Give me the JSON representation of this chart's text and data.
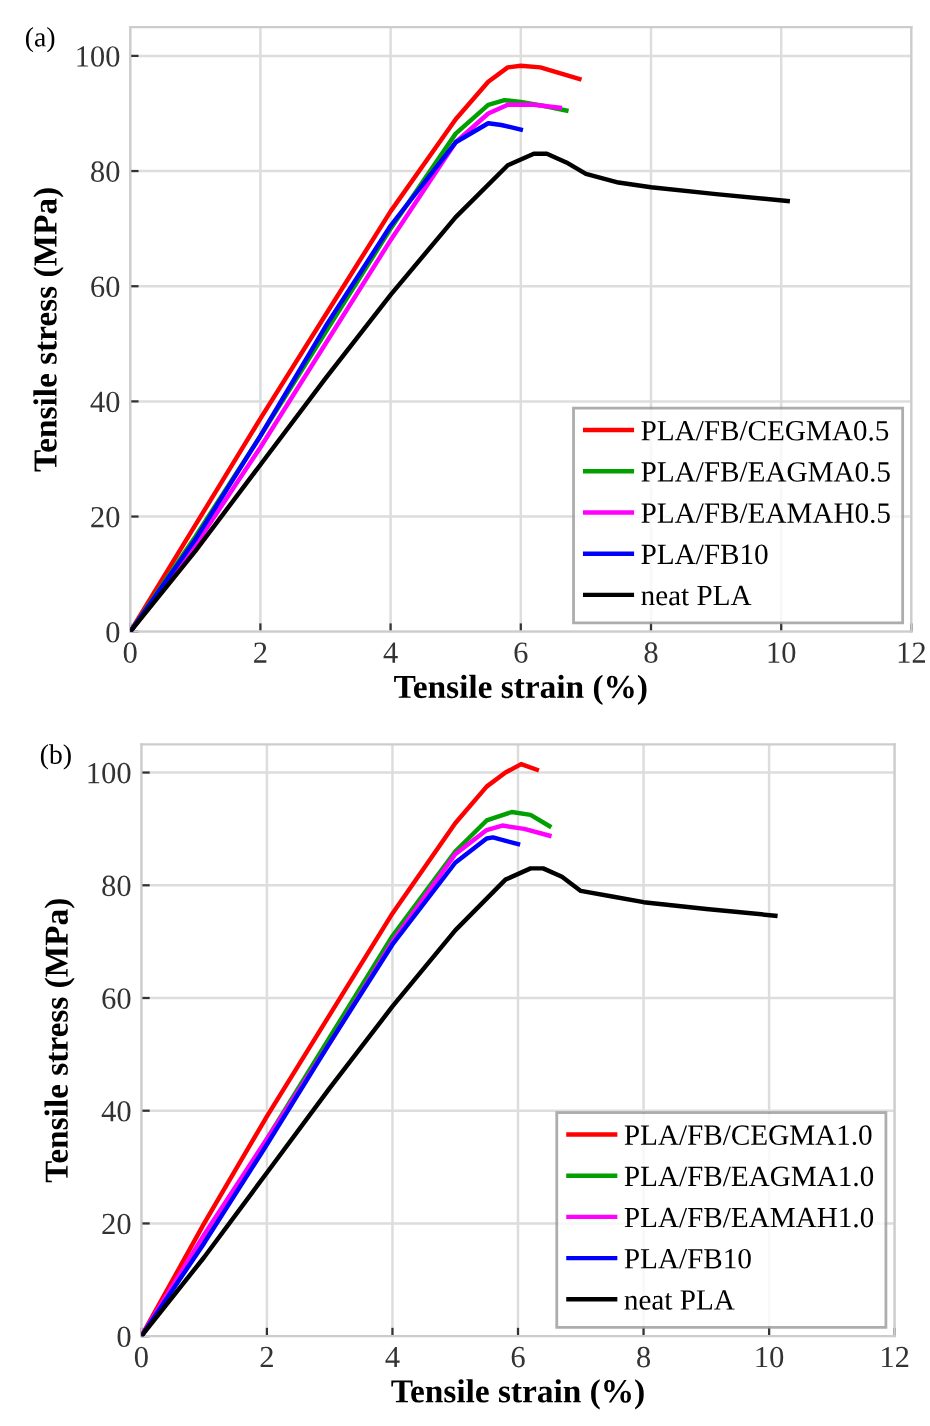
{
  "chart_data": [
    {
      "type": "line",
      "title": "(a)",
      "xlabel": "Tensile strain (%)",
      "ylabel": "Tensile stress (MPa)",
      "xlim": [
        0,
        12
      ],
      "ylim": [
        0,
        105
      ],
      "xticks": [
        0,
        2,
        4,
        6,
        8,
        10,
        12
      ],
      "yticks": [
        0,
        20,
        40,
        60,
        80,
        100
      ],
      "grid": true,
      "legend": "bottom right",
      "marker": "none",
      "line_style": "solid",
      "series": [
        {
          "name": "PLA/FB/CEGMA0.5",
          "color": "#ff0000",
          "x": [
            0,
            1,
            2,
            3,
            4,
            5,
            5.5,
            5.8,
            6,
            6.3,
            6.9
          ],
          "values": [
            0,
            18.5,
            37,
            55,
            73,
            89,
            95.5,
            98,
            98.3,
            98,
            96
          ]
        },
        {
          "name": "PLA/FB/EAGMA0.5",
          "color": "#00a000",
          "x": [
            0,
            1,
            2,
            3,
            4,
            5,
            5.5,
            5.75,
            6,
            6.4,
            6.7
          ],
          "values": [
            0,
            16.5,
            34,
            52,
            70,
            86.5,
            91.5,
            92.3,
            92,
            91.2,
            90.5
          ]
        },
        {
          "name": "PLA/FB/EAMAH0.5",
          "color": "#ff00ff",
          "x": [
            0,
            1,
            2,
            3,
            4,
            5,
            5.5,
            5.8,
            6.2,
            6.6
          ],
          "values": [
            0,
            15,
            32,
            50,
            68,
            85,
            90,
            91.5,
            91.5,
            91
          ]
        },
        {
          "name": "PLA/FB10",
          "color": "#0000ff",
          "x": [
            0,
            1,
            2,
            3,
            4,
            5,
            5.5,
            5.7,
            6
          ],
          "values": [
            0,
            16,
            34,
            53,
            70.5,
            85,
            88.3,
            88,
            87.2
          ]
        },
        {
          "name": "neat PLA",
          "color": "#000000",
          "x": [
            0,
            1,
            2,
            3,
            4,
            5,
            5.8,
            6.2,
            6.4,
            6.7,
            7,
            7.5,
            8,
            9,
            10.1
          ],
          "values": [
            0,
            14,
            29,
            44,
            58.5,
            72,
            81,
            83,
            83,
            81.5,
            79.5,
            78,
            77.2,
            76,
            74.8
          ]
        }
      ]
    },
    {
      "type": "line",
      "title": "(b)",
      "xlabel": "Tensile strain (%)",
      "ylabel": "Tensile stress (MPa)",
      "xlim": [
        0,
        12
      ],
      "ylim": [
        0,
        105
      ],
      "xticks": [
        0,
        2,
        4,
        6,
        8,
        10,
        12
      ],
      "yticks": [
        0,
        20,
        40,
        60,
        80,
        100
      ],
      "grid": true,
      "legend": "bottom right",
      "marker": "none",
      "line_style": "solid",
      "series": [
        {
          "name": "PLA/FB/CEGMA1.0",
          "color": "#ff0000",
          "x": [
            0,
            1,
            2,
            3,
            4,
            5,
            5.5,
            5.8,
            6.05,
            6.3
          ],
          "values": [
            0,
            20,
            39,
            57,
            75,
            91,
            97.5,
            100,
            101.5,
            100.5
          ]
        },
        {
          "name": "PLA/FB/EAGMA1.0",
          "color": "#00a000",
          "x": [
            0,
            1,
            2,
            3,
            4,
            5,
            5.5,
            5.9,
            6.2,
            6.5
          ],
          "values": [
            0,
            17,
            35,
            53,
            71,
            86,
            91.5,
            93,
            92.5,
            90.5
          ]
        },
        {
          "name": "PLA/FB/EAMAH1.0",
          "color": "#ff00ff",
          "x": [
            0,
            1,
            2,
            3,
            4,
            5,
            5.5,
            5.75,
            6.1,
            6.5
          ],
          "values": [
            0,
            18,
            35,
            52,
            70,
            85.5,
            89.8,
            90.6,
            90,
            88.8
          ]
        },
        {
          "name": "PLA/FB10",
          "color": "#0000ff",
          "x": [
            0,
            1,
            2,
            3,
            4,
            5,
            5.5,
            5.6,
            6
          ],
          "values": [
            0,
            16.5,
            34,
            52,
            69.5,
            84,
            88.3,
            88.5,
            87.3
          ]
        },
        {
          "name": "neat PLA",
          "color": "#000000",
          "x": [
            0,
            1,
            2,
            3,
            4,
            5,
            5.8,
            6.2,
            6.4,
            6.7,
            7,
            7.5,
            8,
            9,
            10.1
          ],
          "values": [
            0,
            14,
            29,
            44,
            58.5,
            72,
            81,
            83,
            83,
            81.5,
            79,
            78,
            77,
            75.8,
            74.6
          ]
        }
      ]
    }
  ]
}
